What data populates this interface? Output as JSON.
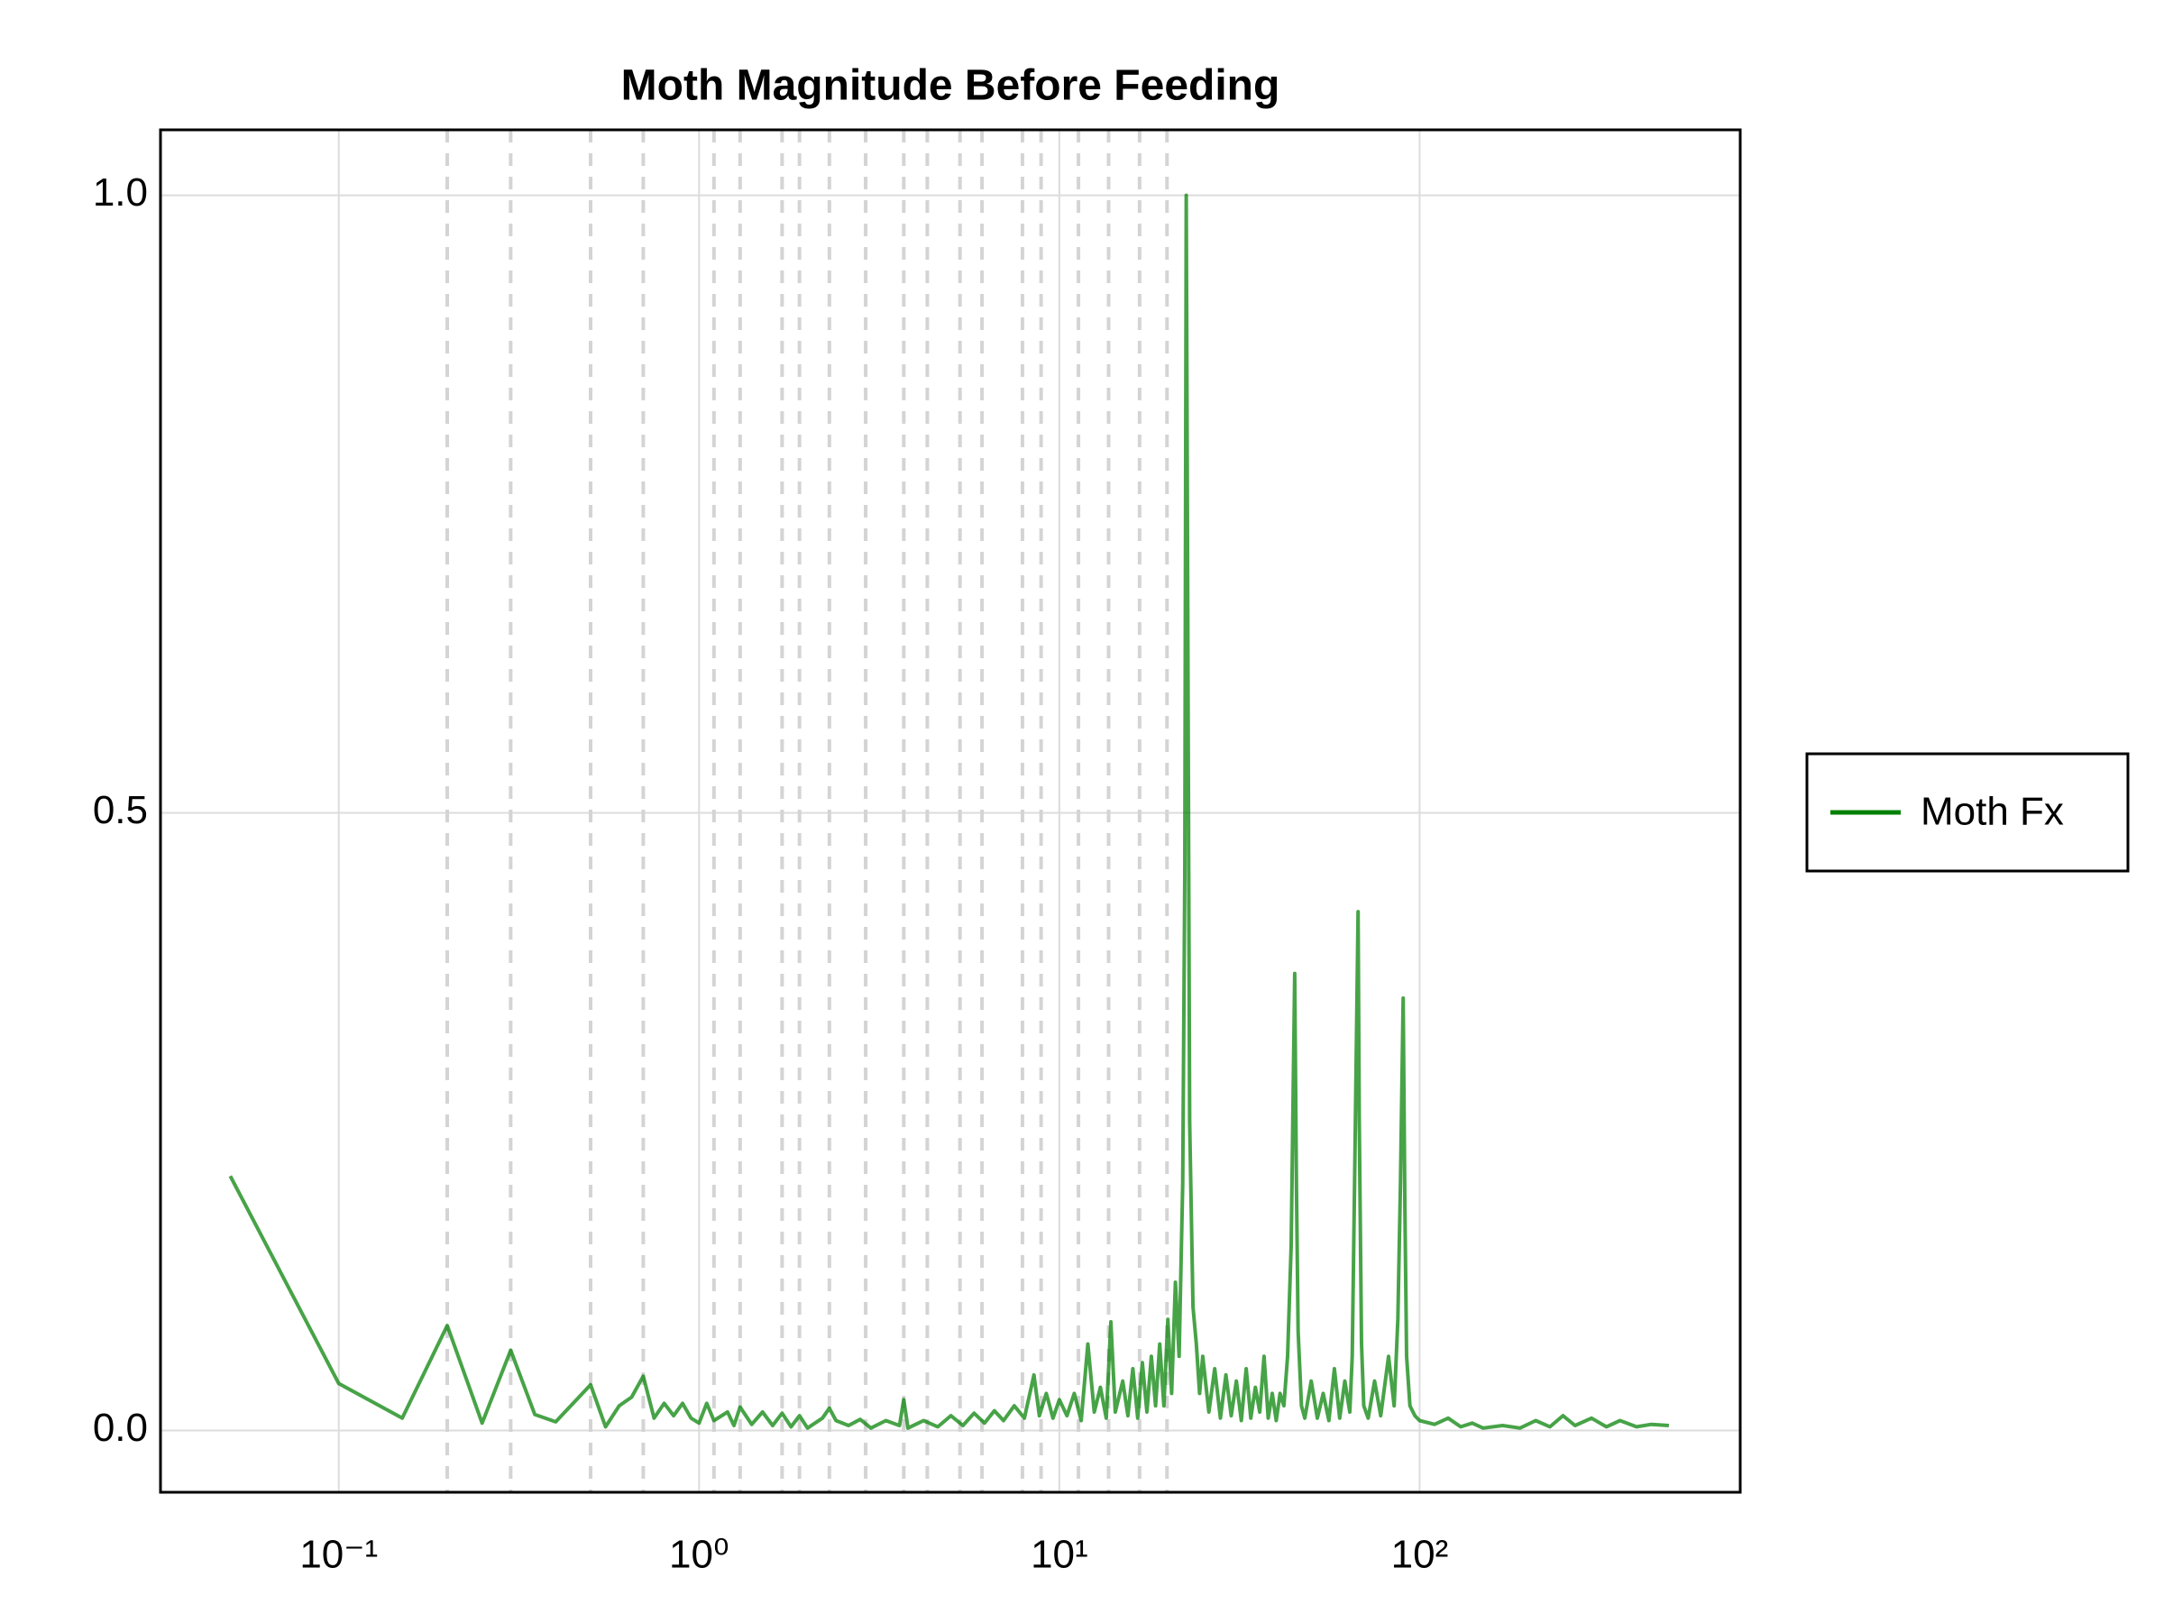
{
  "chart_data": {
    "type": "line",
    "title": "Moth Magnitude Before Feeding",
    "xscale": "log",
    "grid": true,
    "legend": "right",
    "xlim": [
      0.032,
      776
    ],
    "ylim": [
      -0.05,
      1.053
    ],
    "xticks": [
      {
        "value": 0.1,
        "label": "10⁻¹"
      },
      {
        "value": 1,
        "label": "10⁰"
      },
      {
        "value": 10,
        "label": "10¹"
      },
      {
        "value": 100,
        "label": "10²"
      }
    ],
    "yticks": [
      {
        "value": 0,
        "label": "0.0"
      },
      0.5,
      {
        "value": 1,
        "label": "1.0"
      }
    ],
    "vlines": [
      0.2,
      0.3,
      0.5,
      0.7,
      1.1,
      1.3,
      1.7,
      1.9,
      2.3,
      2.9,
      3.7,
      4.3,
      5.3,
      6.1,
      7.9,
      8.9,
      11.3,
      13.7,
      16.7,
      19.9
    ],
    "x": [
      0.05,
      0.1,
      0.15,
      0.2,
      0.25,
      0.3,
      0.35,
      0.4,
      0.5,
      0.55,
      0.6,
      0.65,
      0.7,
      0.75,
      0.8,
      0.85,
      0.9,
      0.95,
      1.0,
      1.05,
      1.1,
      1.2,
      1.25,
      1.3,
      1.4,
      1.5,
      1.6,
      1.7,
      1.8,
      1.9,
      2.0,
      2.2,
      2.3,
      2.4,
      2.6,
      2.8,
      3.0,
      3.3,
      3.6,
      3.7,
      3.8,
      4.2,
      4.6,
      5.0,
      5.4,
      5.8,
      6.2,
      6.6,
      7.0,
      7.5,
      8.0,
      8.5,
      8.8,
      9.2,
      9.6,
      10,
      10.5,
      11,
      11.5,
      12,
      12.5,
      13,
      13.5,
      13.9,
      14.3,
      15,
      15.5,
      16,
      16.5,
      17,
      17.5,
      18,
      18.5,
      19,
      19.5,
      20,
      20.5,
      21,
      21.5,
      22,
      22.3,
      22.5,
      22.7,
      23,
      23.5,
      24,
      24.5,
      25,
      26,
      27,
      28,
      29,
      30,
      31,
      32,
      33,
      34,
      35,
      36,
      37,
      38,
      39,
      40,
      41,
      42,
      43,
      44,
      45,
      45.5,
      46,
      47,
      48,
      50,
      52,
      54,
      56,
      58,
      60,
      62,
      64,
      65,
      66,
      67.5,
      68,
      69,
      70,
      72,
      75,
      78,
      82,
      85,
      87,
      88.5,
      90,
      91,
      92,
      94,
      97,
      100,
      110,
      120,
      130,
      140,
      150,
      170,
      190,
      210,
      230,
      250,
      270,
      300,
      330,
      360,
      400,
      440,
      492
    ],
    "series": [
      {
        "name": "Moth Fx",
        "color": "#008000",
        "values": [
          0.206,
          0.038,
          0.01,
          0.085,
          0.006,
          0.065,
          0.013,
          0.007,
          0.037,
          0.003,
          0.02,
          0.027,
          0.044,
          0.01,
          0.022,
          0.012,
          0.022,
          0.01,
          0.006,
          0.022,
          0.008,
          0.015,
          0.004,
          0.019,
          0.005,
          0.015,
          0.004,
          0.014,
          0.003,
          0.012,
          0.002,
          0.01,
          0.018,
          0.008,
          0.004,
          0.009,
          0.002,
          0.008,
          0.004,
          0.025,
          0.002,
          0.008,
          0.003,
          0.012,
          0.004,
          0.014,
          0.006,
          0.016,
          0.008,
          0.02,
          0.01,
          0.045,
          0.012,
          0.03,
          0.01,
          0.025,
          0.012,
          0.03,
          0.008,
          0.07,
          0.015,
          0.035,
          0.01,
          0.088,
          0.015,
          0.04,
          0.012,
          0.05,
          0.01,
          0.055,
          0.015,
          0.06,
          0.02,
          0.07,
          0.02,
          0.09,
          0.03,
          0.12,
          0.06,
          0.2,
          0.45,
          1.0,
          0.7,
          0.25,
          0.1,
          0.07,
          0.03,
          0.06,
          0.015,
          0.05,
          0.01,
          0.045,
          0.012,
          0.04,
          0.008,
          0.05,
          0.01,
          0.035,
          0.015,
          0.06,
          0.01,
          0.03,
          0.008,
          0.03,
          0.02,
          0.06,
          0.15,
          0.37,
          0.2,
          0.08,
          0.02,
          0.01,
          0.04,
          0.01,
          0.03,
          0.008,
          0.05,
          0.01,
          0.04,
          0.015,
          0.06,
          0.2,
          0.42,
          0.25,
          0.07,
          0.02,
          0.01,
          0.04,
          0.012,
          0.06,
          0.02,
          0.09,
          0.2,
          0.35,
          0.18,
          0.06,
          0.02,
          0.012,
          0.008,
          0.005,
          0.01,
          0.003,
          0.006,
          0.002,
          0.004,
          0.002,
          0.008,
          0.003,
          0.012,
          0.004,
          0.01,
          0.003,
          0.008,
          0.003,
          0.005,
          0.004
        ]
      }
    ]
  }
}
